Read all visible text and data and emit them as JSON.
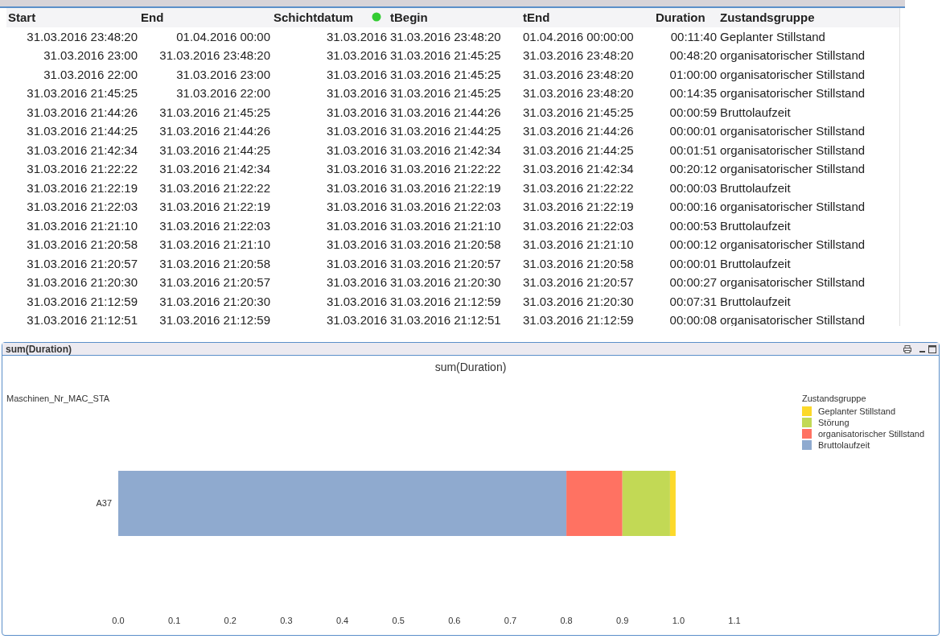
{
  "chart_data": [
    {
      "type": "other",
      "annotations": [
        "Start",
        "End",
        "Schichtdatum",
        "tBegin",
        "tEnd",
        "Duration",
        "Zustandsgruppe",
        "31.03.2016 23:48:20",
        "01.04.2016 00:00",
        "31.03.2016",
        "31.03.2016 23:48:20",
        "01.04.2016 00:00:00",
        "00:11:40",
        "Geplanter Stillstand",
        "31.03.2016 23:00",
        "31.03.2016 23:48:20",
        "31.03.2016",
        "31.03.2016 21:45:25",
        "31.03.2016 23:48:20",
        "00:48:20",
        "organisatorischer Stillstand",
        "31.03.2016 22:00",
        "31.03.2016 23:00",
        "31.03.2016",
        "31.03.2016 21:45:25",
        "31.03.2016 23:48:20",
        "01:00:00",
        "organisatorischer Stillstand",
        "31.03.2016 21:45:25",
        "31.03.2016 22:00",
        "31.03.2016",
        "31.03.2016 21:45:25",
        "31.03.2016 23:48:20",
        "00:14:35",
        "organisatorischer Stillstand",
        "31.03.2016 21:44:26",
        "31.03.2016 21:45:25",
        "31.03.2016",
        "31.03.2016 21:44:26",
        "31.03.2016 21:45:25",
        "00:00:59",
        "Bruttolaufzeit",
        "31.03.2016 21:44:25",
        "31.03.2016 21:44:26",
        "31.03.2016",
        "31.03.2016 21:44:25",
        "31.03.2016 21:44:26",
        "00:00:01",
        "organisatorischer Stillstand",
        "31.03.2016 21:42:34",
        "31.03.2016 21:44:25",
        "31.03.2016",
        "31.03.2016 21:42:34",
        "31.03.2016 21:44:25",
        "00:01:51",
        "organisatorischer Stillstand",
        "31.03.2016 21:22:22",
        "31.03.2016 21:42:34",
        "31.03.2016",
        "31.03.2016 21:22:22",
        "31.03.2016 21:42:34",
        "00:20:12",
        "organisatorischer Stillstand",
        "31.03.2016 21:22:19",
        "31.03.2016 21:22:22",
        "31.03.2016",
        "31.03.2016 21:22:19",
        "31.03.2016 21:22:22",
        "00:00:03",
        "Bruttolaufzeit",
        "31.03.2016 21:22:03",
        "31.03.2016 21:22:19",
        "31.03.2016",
        "31.03.2016 21:22:03",
        "31.03.2016 21:22:19",
        "00:00:16",
        "organisatorischer Stillstand",
        "31.03.2016 21:21:10",
        "31.03.2016 21:22:03",
        "31.03.2016",
        "31.03.2016 21:21:10",
        "31.03.2016 21:22:03",
        "00:00:53",
        "Bruttolaufzeit",
        "31.03.2016 21:20:58",
        "31.03.2016 21:21:10",
        "31.03.2016",
        "31.03.2016 21:20:58",
        "31.03.2016 21:21:10",
        "00:00:12",
        "organisatorischer Stillstand",
        "31.03.2016 21:20:57",
        "31.03.2016 21:20:58",
        "31.03.2016",
        "31.03.2016 21:20:57",
        "31.03.2016 21:20:58",
        "00:00:01",
        "Bruttolaufzeit",
        "31.03.2016 21:20:30",
        "31.03.2016 21:20:57",
        "31.03.2016",
        "31.03.2016 21:20:30",
        "31.03.2016 21:20:57",
        "00:00:27",
        "organisatorischer Stillstand",
        "31.03.2016 21:12:59",
        "31.03.2016 21:20:30",
        "31.03.2016",
        "31.03.2016 21:12:59",
        "31.03.2016 21:20:30",
        "00:07:31",
        "Bruttolaufzeit",
        "31.03.2016 21:12:51",
        "31.03.2016 21:12:59",
        "31.03.2016",
        "31.03.2016 21:12:51",
        "31.03.2016 21:12:59",
        "00:00:08",
        "organisatorischer Stillstand"
      ]
    },
    {
      "type": "bar",
      "orientation": "horizontal",
      "stacked": true,
      "title": "sum(Duration)",
      "ylabel": "Maschinen_Nr_MAC_STA",
      "legend_title": "Zustandsgruppe",
      "legend": "top right",
      "annotations": [
        "sum(Duration)"
      ],
      "categories": [
        "A37"
      ],
      "series": [
        {
          "name": "Bruttolaufzeit",
          "color": "#8faacf",
          "values": [
            0.8
          ]
        },
        {
          "name": "organisatorischer Stillstand",
          "color": "#ff7262",
          "values": [
            0.1
          ]
        },
        {
          "name": "Störung",
          "color": "#c2d955",
          "values": [
            0.085
          ]
        },
        {
          "name": "Geplanter Stillstand",
          "color": "#fcd92a",
          "values": [
            0.01
          ]
        }
      ],
      "xlim": [
        0,
        1.1
      ],
      "xticks": [
        {
          "value": 0,
          "label": "0.0"
        },
        {
          "value": 0.1,
          "label": "0.1"
        },
        {
          "value": 0.2,
          "label": "0.2"
        },
        {
          "value": 0.3,
          "label": "0.3"
        },
        {
          "value": 0.4,
          "label": "0.4"
        },
        {
          "value": 0.5,
          "label": "0.5"
        },
        {
          "value": 0.6,
          "label": "0.6"
        },
        {
          "value": 0.7,
          "label": "0.7"
        },
        {
          "value": 0.8,
          "label": "0.8"
        },
        {
          "value": 0.9,
          "label": "0.9"
        },
        {
          "value": 1.0,
          "label": "1.0"
        },
        {
          "value": 1.1,
          "label": "1.1"
        }
      ]
    }
  ]
}
